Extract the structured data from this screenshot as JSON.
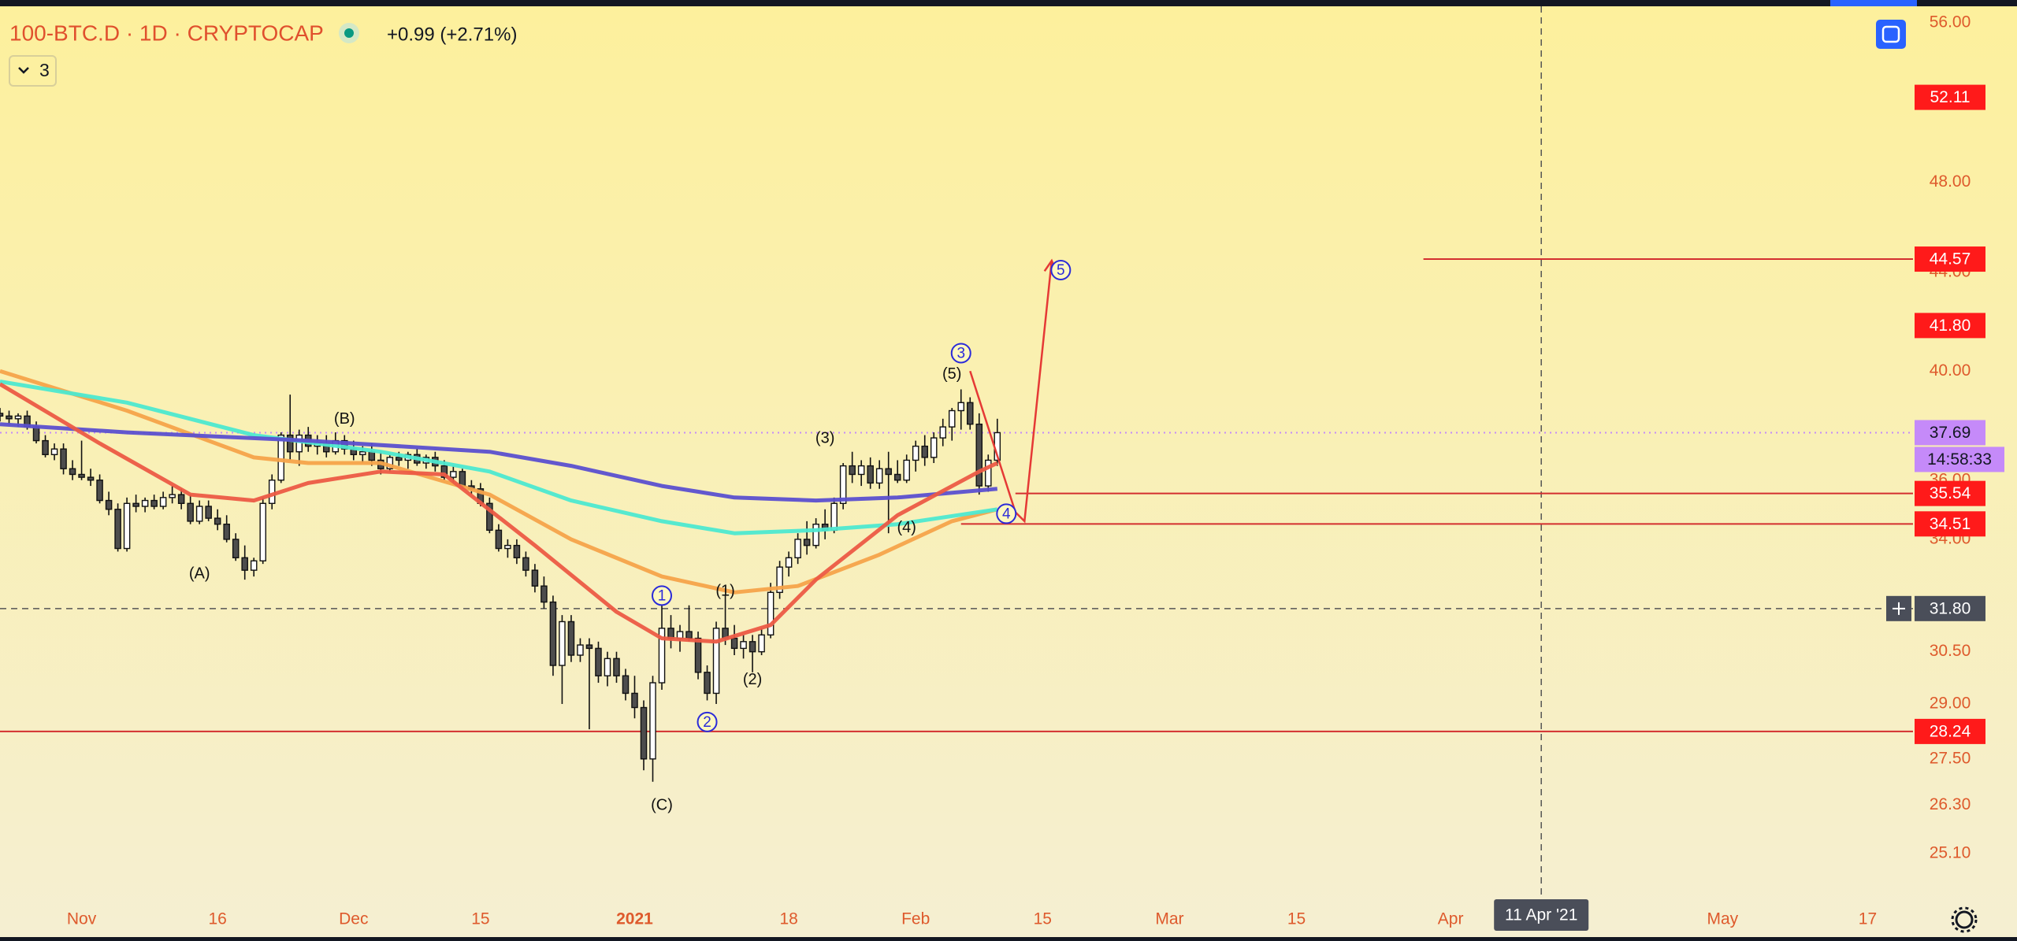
{
  "header": {
    "symbol": "100-BTC.D · 1D · CRYPTOCAP",
    "change": "+0.99 (+2.71%)",
    "indicator_count": 3
  },
  "chart_data": {
    "type": "candlestick",
    "log_scale": true,
    "grid": false,
    "xlim": [
      "2020-10-23",
      "2021-05-22"
    ],
    "ylim": [
      24.05,
      56.9
    ],
    "yticks": [
      {
        "value": 56,
        "label": "56.00"
      },
      {
        "value": 48,
        "label": "48.00"
      },
      {
        "value": 44,
        "label": "44.00"
      },
      {
        "value": 40,
        "label": "40.00"
      },
      {
        "value": 36,
        "label": "36.00"
      },
      {
        "value": 34,
        "label": "34.00"
      },
      {
        "value": 30.5,
        "label": "30.50"
      },
      {
        "value": 29,
        "label": "29.00"
      },
      {
        "value": 27.5,
        "label": "27.50"
      },
      {
        "value": 26.3,
        "label": "26.30"
      },
      {
        "value": 25.1,
        "label": "25.10"
      }
    ],
    "xticks": [
      {
        "value": "2020-11-01",
        "label": "Nov"
      },
      {
        "value": "2020-11-16",
        "label": "16"
      },
      {
        "value": "2020-12-01",
        "label": "Dec"
      },
      {
        "value": "2020-12-15",
        "label": "15"
      },
      {
        "value": "2021-01-01",
        "label": "2021"
      },
      {
        "value": "2021-01-18",
        "label": "18"
      },
      {
        "value": "2021-02-01",
        "label": "Feb"
      },
      {
        "value": "2021-02-15",
        "label": "15"
      },
      {
        "value": "2021-03-01",
        "label": "Mar"
      },
      {
        "value": "2021-03-15",
        "label": "15"
      },
      {
        "value": "2021-04-01",
        "label": "Apr"
      },
      {
        "value": "2021-05-01",
        "label": "May"
      },
      {
        "value": "2021-05-17",
        "label": "17"
      }
    ],
    "up_color": "#ffffff",
    "down_color": "#4d4d4d",
    "wick_color": "#111111",
    "x": [
      "2020-10-23",
      "2020-10-24",
      "2020-10-25",
      "2020-10-26",
      "2020-10-27",
      "2020-10-28",
      "2020-10-29",
      "2020-10-30",
      "2020-10-31",
      "2020-11-01",
      "2020-11-02",
      "2020-11-03",
      "2020-11-04",
      "2020-11-05",
      "2020-11-06",
      "2020-11-07",
      "2020-11-08",
      "2020-11-09",
      "2020-11-10",
      "2020-11-11",
      "2020-11-12",
      "2020-11-13",
      "2020-11-14",
      "2020-11-15",
      "2020-11-16",
      "2020-11-17",
      "2020-11-18",
      "2020-11-19",
      "2020-11-20",
      "2020-11-21",
      "2020-11-22",
      "2020-11-23",
      "2020-11-24",
      "2020-11-25",
      "2020-11-26",
      "2020-11-27",
      "2020-11-28",
      "2020-11-29",
      "2020-11-30",
      "2020-12-01",
      "2020-12-02",
      "2020-12-03",
      "2020-12-04",
      "2020-12-05",
      "2020-12-06",
      "2020-12-07",
      "2020-12-08",
      "2020-12-09",
      "2020-12-10",
      "2020-12-11",
      "2020-12-12",
      "2020-12-13",
      "2020-12-14",
      "2020-12-15",
      "2020-12-16",
      "2020-12-17",
      "2020-12-18",
      "2020-12-19",
      "2020-12-20",
      "2020-12-21",
      "2020-12-22",
      "2020-12-23",
      "2020-12-24",
      "2020-12-25",
      "2020-12-26",
      "2020-12-27",
      "2020-12-28",
      "2020-12-29",
      "2020-12-30",
      "2020-12-31",
      "2021-01-01",
      "2021-01-02",
      "2021-01-03",
      "2021-01-04",
      "2021-01-05",
      "2021-01-06",
      "2021-01-07",
      "2021-01-08",
      "2021-01-09",
      "2021-01-10",
      "2021-01-11",
      "2021-01-12",
      "2021-01-13",
      "2021-01-14",
      "2021-01-15",
      "2021-01-16",
      "2021-01-17",
      "2021-01-18",
      "2021-01-19",
      "2021-01-20",
      "2021-01-21",
      "2021-01-22",
      "2021-01-23",
      "2021-01-24",
      "2021-01-25",
      "2021-01-26",
      "2021-01-27",
      "2021-01-28",
      "2021-01-29",
      "2021-01-30",
      "2021-01-31",
      "2021-02-01",
      "2021-02-02",
      "2021-02-03",
      "2021-02-04",
      "2021-02-05",
      "2021-02-06",
      "2021-02-07",
      "2021-02-08",
      "2021-02-09",
      "2021-02-10"
    ],
    "open": [
      38.4,
      38.3,
      38.2,
      38.3,
      37.9,
      37.4,
      36.9,
      37.1,
      36.4,
      36.2,
      36.1,
      36.0,
      35.3,
      35.0,
      33.7,
      35.2,
      35.1,
      35.3,
      35.1,
      35.4,
      35.5,
      35.2,
      34.6,
      35.1,
      34.7,
      34.5,
      34.0,
      33.4,
      33.0,
      33.3,
      35.2,
      36.0,
      37.6,
      37.0,
      37.6,
      37.2,
      37.3,
      37.0,
      37.4,
      37.1,
      36.9,
      37.0,
      36.7,
      36.4,
      36.8,
      36.7,
      36.9,
      36.6,
      36.8,
      36.5,
      36.1,
      36.3,
      35.8,
      35.7,
      35.2,
      34.3,
      33.7,
      33.8,
      33.4,
      33.0,
      32.5,
      32.0,
      30.1,
      31.4,
      30.4,
      30.7,
      30.6,
      29.8,
      30.3,
      29.8,
      29.3,
      28.9,
      27.5,
      29.6,
      31.2,
      30.9,
      31.1,
      30.9,
      29.9,
      29.3,
      31.2,
      30.9,
      30.6,
      30.8,
      30.5,
      31.0,
      32.3,
      33.1,
      33.4,
      34.0,
      33.8,
      34.5,
      34.3,
      35.2,
      36.5,
      36.2,
      36.5,
      35.9,
      36.4,
      36.2,
      36.0,
      36.7,
      37.2,
      36.8,
      37.5,
      37.9,
      38.5,
      38.8,
      38.0,
      35.8,
      36.7
    ],
    "high": [
      38.6,
      38.5,
      38.4,
      38.5,
      38.1,
      37.6,
      37.3,
      37.3,
      36.7,
      37.4,
      36.4,
      36.2,
      35.6,
      35.2,
      35.4,
      35.5,
      35.4,
      35.5,
      35.6,
      35.8,
      35.7,
      35.5,
      35.3,
      35.3,
      35.0,
      34.8,
      34.2,
      33.8,
      33.4,
      35.4,
      36.2,
      37.7,
      39.1,
      37.8,
      37.9,
      37.6,
      37.6,
      37.7,
      37.6,
      37.4,
      37.2,
      37.3,
      37.0,
      36.9,
      37.0,
      37.0,
      37.1,
      36.9,
      37.0,
      36.7,
      36.5,
      36.4,
      36.0,
      35.9,
      35.4,
      34.5,
      34.0,
      34.0,
      33.6,
      33.2,
      32.8,
      32.2,
      31.6,
      31.6,
      30.9,
      30.9,
      30.8,
      30.5,
      30.5,
      30.0,
      29.8,
      29.1,
      29.8,
      32.0,
      31.6,
      31.3,
      31.9,
      31.1,
      30.1,
      31.4,
      32.2,
      31.3,
      31.0,
      31.0,
      31.2,
      32.6,
      33.3,
      33.6,
      34.2,
      34.6,
      34.7,
      35.0,
      35.4,
      36.6,
      37.0,
      36.7,
      36.8,
      36.7,
      37.0,
      36.7,
      36.9,
      37.4,
      37.6,
      37.7,
      38.2,
      38.6,
      39.3,
      39.0,
      38.4,
      36.9,
      38.2
    ],
    "low": [
      38.1,
      38.0,
      37.9,
      37.8,
      37.3,
      36.8,
      36.7,
      36.2,
      36.0,
      36.0,
      35.8,
      35.2,
      34.8,
      33.6,
      33.6,
      34.9,
      34.9,
      35.0,
      35.0,
      35.2,
      35.0,
      34.5,
      34.5,
      34.6,
      34.3,
      33.9,
      33.3,
      32.7,
      32.8,
      33.2,
      35.0,
      35.9,
      36.7,
      36.5,
      37.0,
      36.9,
      36.8,
      36.9,
      36.9,
      36.7,
      36.6,
      36.5,
      36.2,
      36.3,
      36.5,
      36.4,
      36.5,
      36.4,
      36.3,
      36.0,
      35.9,
      35.7,
      35.5,
      35.1,
      34.2,
      33.6,
      33.4,
      33.2,
      32.8,
      32.3,
      31.8,
      29.8,
      29.0,
      30.2,
      30.2,
      28.3,
      29.6,
      29.5,
      29.6,
      29.1,
      28.6,
      27.2,
      26.9,
      29.4,
      30.6,
      30.5,
      30.8,
      29.7,
      29.1,
      29.0,
      30.7,
      30.4,
      30.3,
      29.9,
      30.4,
      30.9,
      32.1,
      32.8,
      33.2,
      33.5,
      33.7,
      34.0,
      34.2,
      35.0,
      35.9,
      35.8,
      35.7,
      35.7,
      34.2,
      35.9,
      35.9,
      36.3,
      36.5,
      36.6,
      37.2,
      37.4,
      37.8,
      37.8,
      35.5,
      35.6,
      36.5
    ],
    "close": [
      38.3,
      38.2,
      38.3,
      37.9,
      37.4,
      36.9,
      37.1,
      36.4,
      36.2,
      36.1,
      36.0,
      35.3,
      35.0,
      33.7,
      35.2,
      35.1,
      35.3,
      35.1,
      35.4,
      35.5,
      35.2,
      34.6,
      35.1,
      34.7,
      34.5,
      34.0,
      33.4,
      33.0,
      33.3,
      35.2,
      36.0,
      37.6,
      37.0,
      37.6,
      37.2,
      37.3,
      37.0,
      37.4,
      37.1,
      36.9,
      37.0,
      36.7,
      36.4,
      36.8,
      36.7,
      36.9,
      36.6,
      36.8,
      36.5,
      36.1,
      36.3,
      35.8,
      35.7,
      35.2,
      34.3,
      33.7,
      33.8,
      33.4,
      33.0,
      32.5,
      32.0,
      30.1,
      31.4,
      30.4,
      30.7,
      30.6,
      29.8,
      30.3,
      29.8,
      29.3,
      28.9,
      27.5,
      29.6,
      31.2,
      30.9,
      31.1,
      30.9,
      29.9,
      29.3,
      31.2,
      30.9,
      30.6,
      30.8,
      30.5,
      31.0,
      32.3,
      33.1,
      33.4,
      34.0,
      33.8,
      34.5,
      34.3,
      35.2,
      36.5,
      36.2,
      36.5,
      35.9,
      36.4,
      36.2,
      36.0,
      36.7,
      37.2,
      36.8,
      37.5,
      37.9,
      38.5,
      38.8,
      38.0,
      35.8,
      36.7,
      37.69
    ],
    "series": [
      {
        "color": "#f6a34a",
        "x": [
          "2020-10-23",
          "2020-11-06",
          "2020-11-20",
          "2020-11-26",
          "2020-12-04",
          "2020-12-16",
          "2020-12-25",
          "2021-01-04",
          "2021-01-12",
          "2021-01-19",
          "2021-01-28",
          "2021-02-05",
          "2021-02-10"
        ],
        "values": [
          40.0,
          38.5,
          36.8,
          36.6,
          36.6,
          35.5,
          34.0,
          32.8,
          32.3,
          32.5,
          33.5,
          34.6,
          35.0
        ]
      },
      {
        "color": "#4de8d0",
        "x": [
          "2020-10-23",
          "2020-11-06",
          "2020-11-20",
          "2020-12-04",
          "2020-12-16",
          "2020-12-25",
          "2021-01-04",
          "2021-01-12",
          "2021-01-21",
          "2021-01-30",
          "2021-02-10"
        ],
        "values": [
          39.6,
          38.8,
          37.6,
          37.0,
          36.3,
          35.3,
          34.6,
          34.2,
          34.3,
          34.5,
          35.0
        ]
      },
      {
        "color": "#5b4fcf",
        "x": [
          "2020-10-23",
          "2020-11-06",
          "2020-11-26",
          "2020-12-16",
          "2020-12-25",
          "2021-01-04",
          "2021-01-12",
          "2021-01-21",
          "2021-01-30",
          "2021-02-10"
        ],
        "values": [
          38.0,
          37.7,
          37.4,
          37.0,
          36.5,
          35.8,
          35.4,
          35.3,
          35.4,
          35.7
        ]
      },
      {
        "color": "#ec5a44",
        "x": [
          "2020-10-23",
          "2020-11-03",
          "2020-11-13",
          "2020-11-20",
          "2020-11-26",
          "2020-12-04",
          "2020-12-11",
          "2020-12-21",
          "2020-12-30",
          "2021-01-04",
          "2021-01-10",
          "2021-01-16",
          "2021-01-21",
          "2021-01-30",
          "2021-02-08",
          "2021-02-10"
        ],
        "values": [
          39.5,
          37.3,
          35.5,
          35.3,
          35.9,
          36.3,
          36.2,
          33.8,
          31.7,
          30.9,
          30.8,
          31.3,
          32.7,
          34.8,
          36.3,
          36.6
        ]
      }
    ],
    "annotations": [
      {
        "text": "(A)",
        "x": "2020-11-14",
        "y": 32.9
      },
      {
        "text": "(B)",
        "x": "2020-11-30",
        "y": 38.2
      },
      {
        "text": "(C)",
        "x": "2021-01-04",
        "y": 26.3
      },
      {
        "text": "(1)",
        "x": "2021-01-11",
        "y": 32.35
      },
      {
        "text": "(2)",
        "x": "2021-01-14",
        "y": 29.7
      },
      {
        "text": "(3)",
        "x": "2021-01-22",
        "y": 37.5
      },
      {
        "text": "(4)",
        "x": "2021-01-31",
        "y": 34.4
      },
      {
        "text": "(5)",
        "x": "2021-02-05",
        "y": 39.9
      },
      {
        "text": "1",
        "x": "2021-01-04",
        "y": 32.2,
        "circled": true
      },
      {
        "text": "2",
        "x": "2021-01-09",
        "y": 28.5,
        "circled": true
      },
      {
        "text": "3",
        "x": "2021-02-06",
        "y": 40.7,
        "circled": true
      },
      {
        "text": "4",
        "x": "2021-02-11",
        "y": 34.85,
        "circled": true
      },
      {
        "text": "5",
        "x": "2021-02-17",
        "y": 44.1,
        "circled": true
      }
    ],
    "annotation_color": "#111111",
    "circled_color": "#2b2bd9",
    "projection": {
      "color": "#e53935",
      "x": [
        "2021-02-07",
        "2021-02-12",
        "2021-02-13",
        "2021-02-16"
      ],
      "values": [
        40.0,
        34.9,
        34.6,
        44.5
      ]
    },
    "level_color": "#d32f2f",
    "level_label_color": "#ff1a1a",
    "levels": [
      {
        "price": 52.11,
        "line": false
      },
      {
        "price": 44.57,
        "line": true,
        "from": "2021-03-29"
      },
      {
        "price": {
          "value": 41.8,
          "label": "41.80"
        },
        "line": false
      },
      {
        "price": 35.54,
        "line": true,
        "from": "2021-02-12"
      },
      {
        "price": 34.51,
        "line": true,
        "from": "2021-02-06"
      },
      {
        "price": 28.24,
        "line": true
      }
    ],
    "last": {
      "price": 37.69,
      "countdown": "14:58:33",
      "color": "#c58af9"
    },
    "crosshair": {
      "x": "2021-04-11",
      "x_label": "11 Apr '21",
      "y": {
        "value": 31.8,
        "label": "31.80"
      }
    }
  }
}
